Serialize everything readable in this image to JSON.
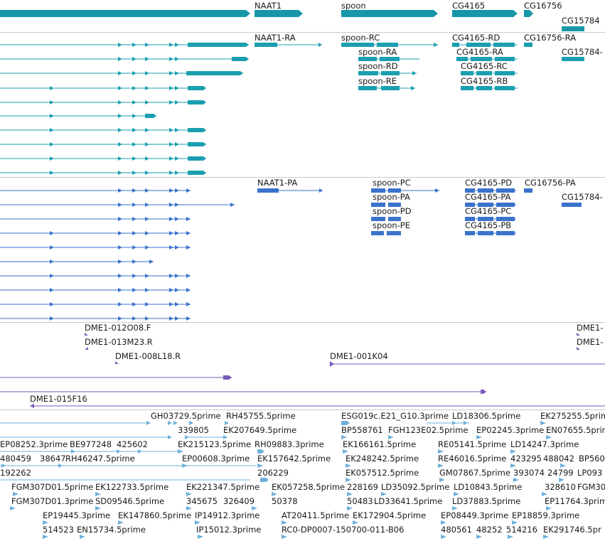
{
  "colors": {
    "gene": "#1797a8",
    "transcript": "#1a9fb0",
    "protein": "#3a72cc",
    "clone": "#7a5ab8",
    "est": "#6eb0db",
    "separator": "#c9c9c9"
  },
  "genes": {
    "labels": [
      "NAAT1",
      "spoon",
      "CG4165",
      "CG16756",
      "CG15784"
    ]
  },
  "transcripts": {
    "labels": [
      "NAAT1-RA",
      "spoon-RC",
      "spoon-RA",
      "spoon-RD",
      "spoon-RE",
      "CG4165-RD",
      "CG4165-RA",
      "CG4165-RC",
      "CG4165-RB",
      "CG16756-RA",
      "CG15784-"
    ]
  },
  "proteins": {
    "labels": [
      "NAAT1-PA",
      "spoon-PC",
      "spoon-PA",
      "spoon-PD",
      "spoon-PE",
      "CG4165-PD",
      "CG4165-PA",
      "CG4165-PC",
      "CG4165-PB",
      "CG16756-PA",
      "CG15784-"
    ]
  },
  "clones": {
    "labels": [
      "DME1-012O08.F",
      "DME1-013M23.R",
      "DME1-008L18.R",
      "DME1-001K04",
      "DME1-015F16",
      "DME1-",
      "DME1-"
    ]
  },
  "ests": {
    "labels": [
      "GH03729.5prime",
      "RH45755.5prime",
      "ESG019c.E21_G10.3prime",
      "LD18306.5prime",
      "EK275255.5prime",
      "339805",
      "EK207649.5prime",
      "BP558761",
      "FGH123E02.5prime",
      "EP02245.3prime",
      "EN07655.5prime",
      "EP08252.3prime",
      "BE977248",
      "425602",
      "EK215123.5prime",
      "RH09883.3prime",
      "EK166161.5prime",
      "RE05141.5prime",
      "LD14247.3prime",
      "480459",
      "38647",
      "RH46247.5prime",
      "EP00608.3prime",
      "EK157642.5prime",
      "EK248242.5prime",
      "RE46016.5prime",
      "423295",
      "488042",
      "BP560",
      "192262",
      "206229",
      "EK057512.5prime",
      "GM07867.5prime",
      "393074",
      "24799",
      "LP093",
      "FGM307D01.5prime",
      "EK122733.5prime",
      "EK221347.5prime",
      "EK057258.5prime",
      "228169",
      "LD35092.5prime",
      "LD10843.5prime",
      "328610",
      "FGM30",
      "FGM307D01.3prime",
      "SD09546.5prime",
      "345675",
      "326409",
      "50378",
      "50483",
      "LD33641.5prime",
      "LD37883.5prime",
      "EP11764.3prim",
      "EP19445.3prime",
      "EK147860.5prime",
      "IP14912.3prime",
      "AT20411.5prime",
      "EK172904.5prime",
      "EP08449.3prime",
      "EP18859.3prime",
      "514523",
      "EN15734.5prime",
      "IP15012.3prime",
      "RC0-DP0007-150700-011-B06",
      "480561",
      "48252",
      "514216",
      "EK291746.5pr"
    ]
  }
}
